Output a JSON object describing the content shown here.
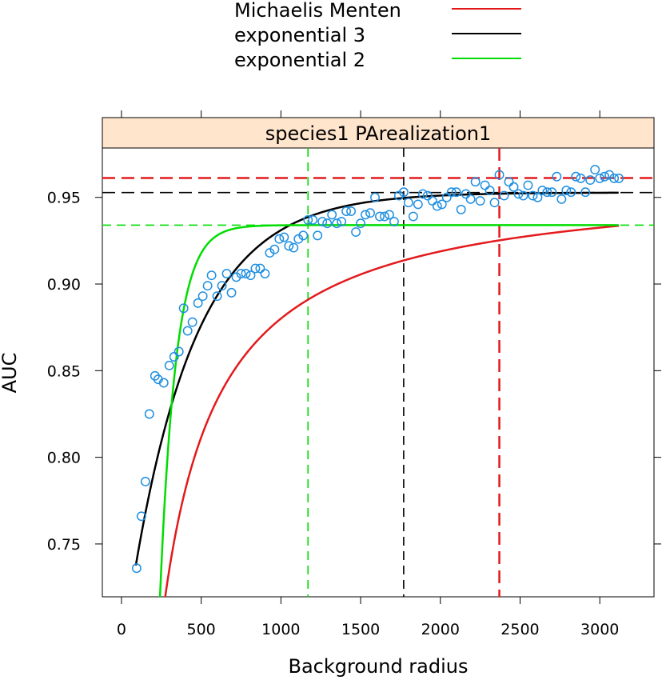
{
  "chart_data": {
    "type": "scatter",
    "panel_title": "species1 PArealization1",
    "xlabel": "Background radius",
    "ylabel": "AUC",
    "xlim": [
      -120,
      3340
    ],
    "ylim": [
      0.7195,
      0.9785
    ],
    "xticks": [
      0,
      500,
      1000,
      1500,
      2000,
      2500,
      3000
    ],
    "xtick_labels": [
      "0",
      "500",
      "1000",
      "1500",
      "2000",
      "2500",
      "3000"
    ],
    "yticks": [
      0.75,
      0.8,
      0.85,
      0.9,
      0.95
    ],
    "ytick_labels": [
      "0.75",
      "0.80",
      "0.85",
      "0.90",
      "0.95"
    ],
    "legend_position": "top",
    "legend": [
      {
        "label": "Michaelis Menten",
        "color": "#e31a1c"
      },
      {
        "label": "exponential 3",
        "color": "#000000"
      },
      {
        "label": "exponential 2",
        "color": "#00dd00"
      }
    ],
    "point_color": "#1f8fe0",
    "points": [
      [
        95,
        0.736
      ],
      [
        125,
        0.766
      ],
      [
        150,
        0.786
      ],
      [
        175,
        0.825
      ],
      [
        210,
        0.847
      ],
      [
        230,
        0.845
      ],
      [
        265,
        0.843
      ],
      [
        300,
        0.853
      ],
      [
        330,
        0.858
      ],
      [
        360,
        0.861
      ],
      [
        390,
        0.886
      ],
      [
        415,
        0.873
      ],
      [
        445,
        0.878
      ],
      [
        480,
        0.889
      ],
      [
        510,
        0.893
      ],
      [
        540,
        0.899
      ],
      [
        565,
        0.905
      ],
      [
        600,
        0.893
      ],
      [
        630,
        0.899
      ],
      [
        660,
        0.906
      ],
      [
        690,
        0.895
      ],
      [
        720,
        0.904
      ],
      [
        750,
        0.906
      ],
      [
        780,
        0.906
      ],
      [
        810,
        0.905
      ],
      [
        840,
        0.909
      ],
      [
        870,
        0.909
      ],
      [
        900,
        0.906
      ],
      [
        930,
        0.918
      ],
      [
        960,
        0.92
      ],
      [
        990,
        0.926
      ],
      [
        1020,
        0.927
      ],
      [
        1050,
        0.922
      ],
      [
        1080,
        0.921
      ],
      [
        1110,
        0.926
      ],
      [
        1140,
        0.928
      ],
      [
        1170,
        0.937
      ],
      [
        1200,
        0.937
      ],
      [
        1230,
        0.928
      ],
      [
        1260,
        0.936
      ],
      [
        1290,
        0.935
      ],
      [
        1320,
        0.94
      ],
      [
        1350,
        0.935
      ],
      [
        1380,
        0.936
      ],
      [
        1410,
        0.942
      ],
      [
        1440,
        0.942
      ],
      [
        1470,
        0.93
      ],
      [
        1500,
        0.935
      ],
      [
        1530,
        0.94
      ],
      [
        1560,
        0.941
      ],
      [
        1590,
        0.95
      ],
      [
        1620,
        0.939
      ],
      [
        1650,
        0.939
      ],
      [
        1680,
        0.94
      ],
      [
        1710,
        0.936
      ],
      [
        1740,
        0.951
      ],
      [
        1770,
        0.953
      ],
      [
        1800,
        0.947
      ],
      [
        1830,
        0.939
      ],
      [
        1860,
        0.946
      ],
      [
        1890,
        0.952
      ],
      [
        1920,
        0.951
      ],
      [
        1950,
        0.948
      ],
      [
        1980,
        0.945
      ],
      [
        2010,
        0.946
      ],
      [
        2040,
        0.95
      ],
      [
        2070,
        0.953
      ],
      [
        2100,
        0.953
      ],
      [
        2130,
        0.943
      ],
      [
        2160,
        0.952
      ],
      [
        2190,
        0.949
      ],
      [
        2220,
        0.959
      ],
      [
        2250,
        0.948
      ],
      [
        2280,
        0.957
      ],
      [
        2310,
        0.954
      ],
      [
        2340,
        0.947
      ],
      [
        2370,
        0.963
      ],
      [
        2400,
        0.951
      ],
      [
        2430,
        0.959
      ],
      [
        2460,
        0.956
      ],
      [
        2490,
        0.952
      ],
      [
        2520,
        0.951
      ],
      [
        2550,
        0.957
      ],
      [
        2580,
        0.951
      ],
      [
        2610,
        0.95
      ],
      [
        2640,
        0.954
      ],
      [
        2670,
        0.953
      ],
      [
        2700,
        0.953
      ],
      [
        2730,
        0.962
      ],
      [
        2760,
        0.949
      ],
      [
        2790,
        0.954
      ],
      [
        2820,
        0.953
      ],
      [
        2850,
        0.962
      ],
      [
        2880,
        0.961
      ],
      [
        2910,
        0.953
      ],
      [
        2940,
        0.96
      ],
      [
        2970,
        0.966
      ],
      [
        3000,
        0.961
      ],
      [
        3030,
        0.962
      ],
      [
        3060,
        0.963
      ],
      [
        3090,
        0.961
      ],
      [
        3120,
        0.961
      ]
    ],
    "curves": [
      {
        "model": "michaelis-menten",
        "color": "#e31a1c",
        "asymptote": 0.9612,
        "half_sat": 92.2,
        "x_range": [
          100,
          3120
        ]
      },
      {
        "model": "exponential-3",
        "color": "#000000",
        "asymptote": 0.9528,
        "amplitude": 0.27,
        "rate": 0.00252,
        "x_range": [
          90,
          3120
        ]
      },
      {
        "model": "exponential-2",
        "color": "#00dd00",
        "asymptote": 0.934,
        "rate": 0.01,
        "offset": 94.5,
        "x_range": [
          110,
          3120
        ]
      }
    ],
    "reference_lines": [
      {
        "orientation": "horizontal",
        "value": 0.9612,
        "color": "#e31a1c",
        "dash": "long"
      },
      {
        "orientation": "horizontal",
        "value": 0.9528,
        "color": "#000000",
        "dash": "long"
      },
      {
        "orientation": "horizontal",
        "value": 0.934,
        "color": "#00dd00",
        "dash": "medium"
      },
      {
        "orientation": "vertical",
        "value": 2370,
        "color": "#e31a1c",
        "dash": "long"
      },
      {
        "orientation": "vertical",
        "value": 1770,
        "color": "#000000",
        "dash": "medium"
      },
      {
        "orientation": "vertical",
        "value": 1170,
        "color": "#00dd00",
        "dash": "medium"
      }
    ]
  }
}
